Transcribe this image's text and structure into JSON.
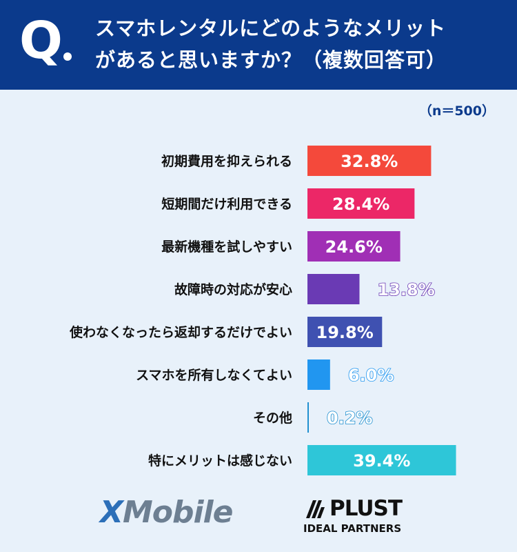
{
  "header": {
    "q_mark": "Q",
    "title_line1": "スマホレンタルにどのようなメリット",
    "title_line2": "があると思いますか？（複数回答可）"
  },
  "sample_size": "（n＝500）",
  "chart_data": {
    "type": "bar",
    "orientation": "horizontal",
    "title": "スマホレンタルにどのようなメリットがあると思いますか？（複数回答可）",
    "categories": [
      "初期費用を抑えられる",
      "短期間だけ利用できる",
      "最新機種を試しやすい",
      "故障時の対応が安心",
      "使わなくなったら返却するだけでよい",
      "スマホを所有しなくてよい",
      "その他",
      "特にメリットは感じない"
    ],
    "values": [
      32.8,
      28.4,
      24.6,
      13.8,
      19.8,
      6.0,
      0.2,
      39.4
    ],
    "labels": [
      "32.8%",
      "28.4%",
      "24.6%",
      "13.8%",
      "19.8%",
      "6.0%",
      "0.2%",
      "39.4%"
    ],
    "colors": [
      "#f4493b",
      "#ec2767",
      "#a02fb5",
      "#6a3ab4",
      "#3f51b1",
      "#2196f0",
      "#1f8fcf",
      "#2ec6d8"
    ],
    "unit": "%",
    "xlim": [
      0,
      40
    ],
    "grid": false,
    "legend": "none"
  },
  "logos": {
    "xmobile": "XMobile",
    "plust_name": "PLUST",
    "plust_sub": "IDEAL PARTNERS"
  }
}
